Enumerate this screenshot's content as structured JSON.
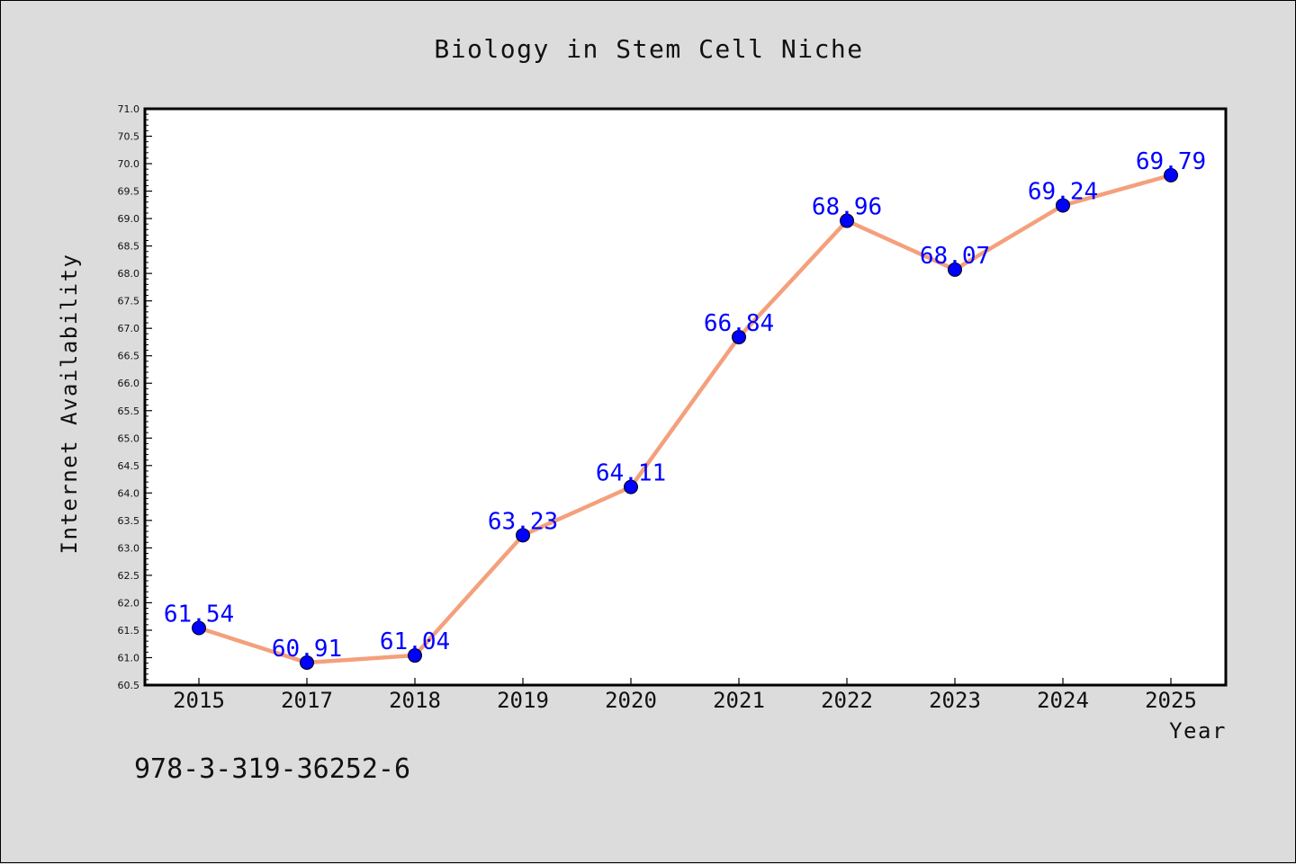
{
  "chart_data": {
    "type": "line",
    "title": "Biology in Stem Cell Niche",
    "xlabel": "Year",
    "ylabel": "Internet Availability",
    "categories": [
      "2015",
      "2017",
      "2018",
      "2019",
      "2020",
      "2021",
      "2022",
      "2023",
      "2024",
      "2025"
    ],
    "values": [
      61.54,
      60.91,
      61.04,
      63.23,
      64.11,
      66.84,
      68.96,
      68.07,
      69.24,
      69.79
    ],
    "value_labels": [
      "61.54",
      "60.91",
      "61.04",
      "63.23",
      "64.11",
      "66.84",
      "68.96",
      "68.07",
      "69.24",
      "69.79"
    ],
    "ylim": [
      60.5,
      71.0
    ],
    "yticks": [
      "60.5",
      "61.0",
      "61.5",
      "62.0",
      "62.5",
      "63.0",
      "63.5",
      "64.0",
      "64.5",
      "65.0",
      "65.5",
      "66.0",
      "66.5",
      "67.0",
      "67.5",
      "68.0",
      "68.5",
      "69.0",
      "69.5",
      "70.0",
      "70.5",
      "71.0"
    ],
    "grid": false,
    "colors": {
      "line": "#f4a07c",
      "marker": "#0000ff",
      "label": "#0000ff",
      "background": "#dcdcdc",
      "plot_background": "#ffffff"
    }
  },
  "footer_text": "978-3-319-36252-6"
}
